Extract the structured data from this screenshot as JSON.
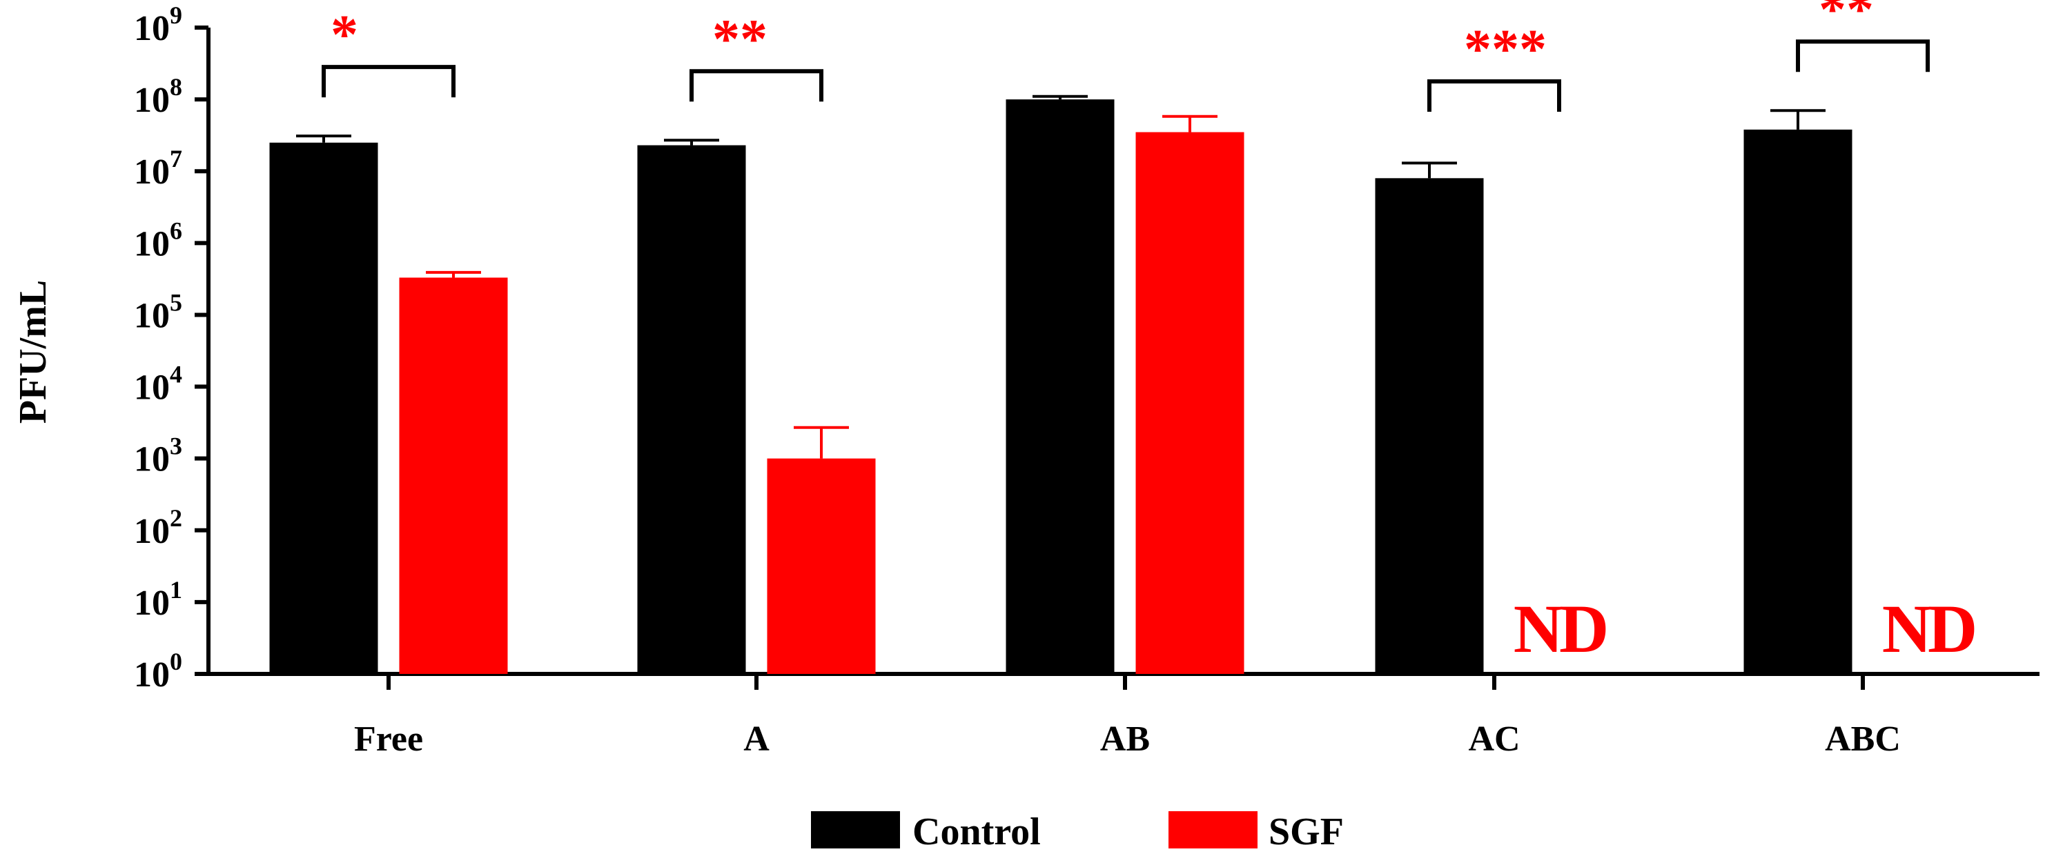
{
  "chart_data": {
    "type": "bar",
    "title": "",
    "xlabel": "",
    "ylabel": "PFU/mL",
    "yscale": "log10",
    "ylim": [
      1,
      1000000000
    ],
    "yticks": [
      {
        "base": "10",
        "exp": "0"
      },
      {
        "base": "10",
        "exp": "1"
      },
      {
        "base": "10",
        "exp": "2"
      },
      {
        "base": "10",
        "exp": "3"
      },
      {
        "base": "10",
        "exp": "4"
      },
      {
        "base": "10",
        "exp": "5"
      },
      {
        "base": "10",
        "exp": "6"
      },
      {
        "base": "10",
        "exp": "7"
      },
      {
        "base": "10",
        "exp": "8"
      },
      {
        "base": "10",
        "exp": "9"
      }
    ],
    "categories": [
      "Free",
      "A",
      "AB",
      "AC",
      "ABC"
    ],
    "series": [
      {
        "name": "Control",
        "color": "#000000",
        "values": [
          25000000,
          23000000,
          100000000,
          8000000,
          38000000
        ],
        "error_upper": [
          31000000,
          27000000,
          110000000,
          13000000,
          70000000
        ]
      },
      {
        "name": "SGF",
        "color": "#ff0000",
        "values": [
          330000,
          1000,
          35000000,
          null,
          null
        ],
        "error_upper": [
          390000,
          2700,
          58000000,
          null,
          null
        ],
        "labels": [
          "",
          "",
          "",
          "ND",
          "ND"
        ]
      }
    ],
    "significance": [
      {
        "category": "Free",
        "label": "*"
      },
      {
        "category": "A",
        "label": "**"
      },
      {
        "category": "AB",
        "label": ""
      },
      {
        "category": "AC",
        "label": "***"
      },
      {
        "category": "ABC",
        "label": "**"
      }
    ],
    "annotation_color": "#ff0000",
    "legend": {
      "position": "bottom",
      "entries": [
        "Control",
        "SGF"
      ]
    }
  }
}
